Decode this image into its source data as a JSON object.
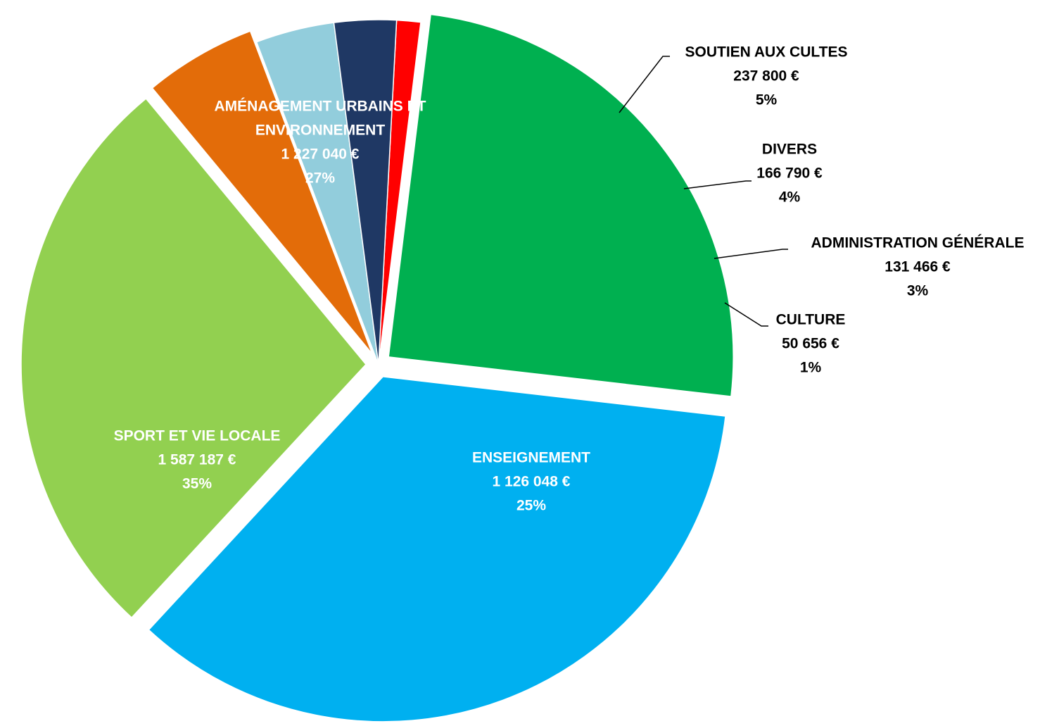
{
  "chart_data": {
    "type": "pie",
    "unit": "€",
    "slices": [
      {
        "label": "CULTURE",
        "value": 50656,
        "value_text": "50 656 €",
        "percent": "1%",
        "color": "#ff0000",
        "label_color": "#000000",
        "label_line": true,
        "exploded": false
      },
      {
        "label": "ENSEIGNEMENT",
        "value": 1126048,
        "value_text": "1 126 048 €",
        "percent": "25%",
        "color": "#00b050",
        "label_color": "#ffffff",
        "label_line": false,
        "exploded": true
      },
      {
        "label": "SPORT ET VIE LOCALE",
        "value": 1587187,
        "value_text": "1 587 187 €",
        "percent": "35%",
        "color": "#00b0f0",
        "label_color": "#ffffff",
        "label_line": false,
        "exploded": true
      },
      {
        "label": "AMÉNAGEMENT URBAINS ET ENVIRONNEMENT",
        "value": 1227040,
        "value_text": "1 227 040 €",
        "percent": "27%",
        "color": "#92d050",
        "label_color": "#ffffff",
        "label_line": false,
        "exploded": true
      },
      {
        "label": "SOUTIEN AUX CULTES",
        "value": 237800,
        "value_text": "237 800 €",
        "percent": "5%",
        "color": "#e36c09",
        "label_color": "#000000",
        "label_line": true,
        "exploded": true
      },
      {
        "label": "DIVERS",
        "value": 166790,
        "value_text": "166 790 €",
        "percent": "4%",
        "color": "#92cddc",
        "label_color": "#000000",
        "label_line": true,
        "exploded": false
      },
      {
        "label": "ADMINISTRATION GÉNÉRALE",
        "value": 131466,
        "value_text": "131 466 €",
        "percent": "3%",
        "color": "#1f3864",
        "label_color": "#000000",
        "label_line": true,
        "exploded": false
      }
    ]
  }
}
